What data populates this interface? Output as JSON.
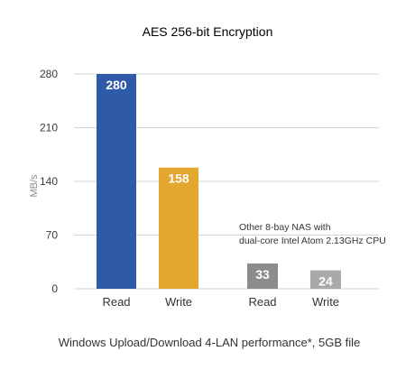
{
  "chart_data": {
    "type": "bar",
    "title": "AES 256-bit Encryption",
    "ylabel": "MB/s",
    "xlabel": "Windows Upload/Download 4-LAN performance*, 5GB file",
    "ylim": [
      0,
      280
    ],
    "yticks": [
      0,
      70,
      140,
      210,
      280
    ],
    "grid": true,
    "groups": [
      {
        "name": "",
        "bars": [
          {
            "label": "Read",
            "value": 280,
            "color": "#2E5AA7"
          },
          {
            "label": "Write",
            "value": 158,
            "color": "#E3A62F"
          }
        ]
      },
      {
        "name": "Other 8-bay NAS with dual-core Intel Atom 2.13GHz CPU",
        "bars": [
          {
            "label": "Read",
            "value": 33,
            "color": "#8C8C8C"
          },
          {
            "label": "Write",
            "value": 24,
            "color": "#A9A9A9"
          }
        ]
      }
    ],
    "annotation_lines": [
      "Other 8-bay NAS with",
      "dual-core Intel Atom 2.13GHz CPU"
    ]
  }
}
